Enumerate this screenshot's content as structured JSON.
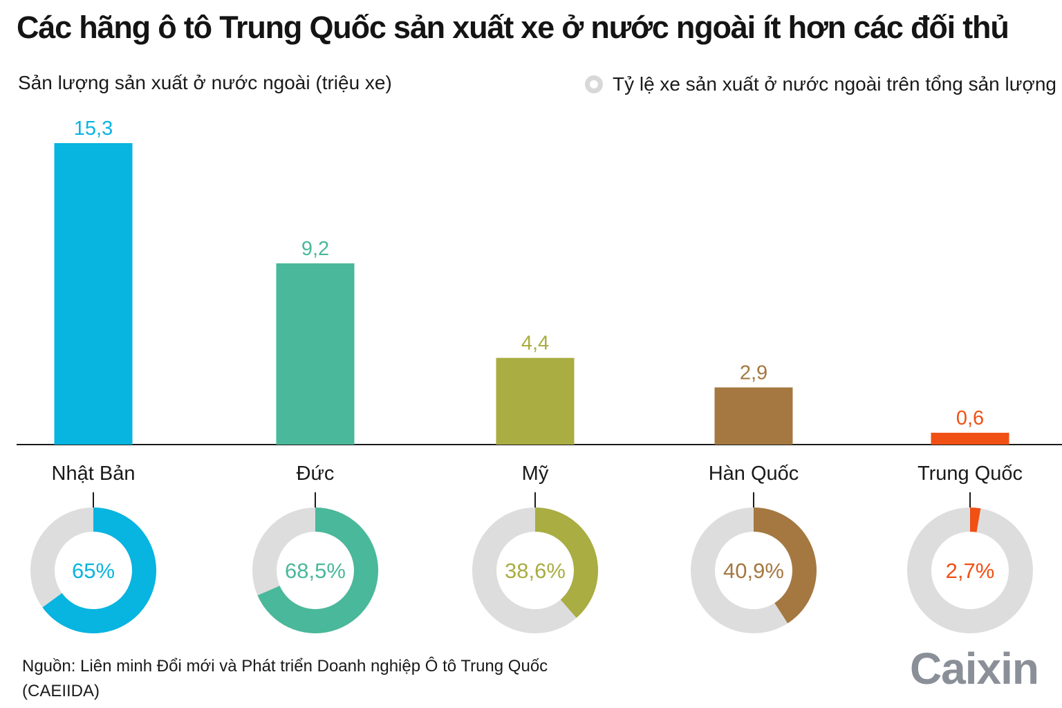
{
  "title": "Các hãng ô tô Trung Quốc sản xuất xe ở nước ngoài ít hơn các đối thủ",
  "subtitle": "Sản lượng sản xuất ở nước ngoài (triệu xe)",
  "legend": {
    "label": "Tỷ lệ xe sản xuất ở nước ngoài trên tổng sản lượng",
    "ring_color": "#d8d8d8"
  },
  "source": "Nguồn: Liên minh Đổi mới và Phát triển Doanh nghiệp Ô tô Trung Quốc (CAEIIDA)",
  "logo": "Caixin",
  "chart_data": {
    "type": "bar",
    "categories": [
      "Nhật Bản",
      "Đức",
      "Mỹ",
      "Hàn Quốc",
      "Trung Quốc"
    ],
    "values": [
      15.3,
      9.2,
      4.4,
      2.9,
      0.6
    ],
    "value_labels": [
      "15,3",
      "9,2",
      "4,4",
      "2,9",
      "0,6"
    ],
    "colors": [
      "#08b4e0",
      "#4ab89a",
      "#a9ad42",
      "#a47840",
      "#f05014"
    ],
    "ylim": [
      0,
      15.3
    ],
    "share_percent": [
      65,
      68.5,
      38.6,
      40.9,
      2.7
    ],
    "share_labels": [
      "65%",
      "68,5%",
      "38,6%",
      "40,9%",
      "2,7%"
    ],
    "donut_track_color": "#dddddd",
    "grid": false,
    "legend_position": "top-right"
  }
}
